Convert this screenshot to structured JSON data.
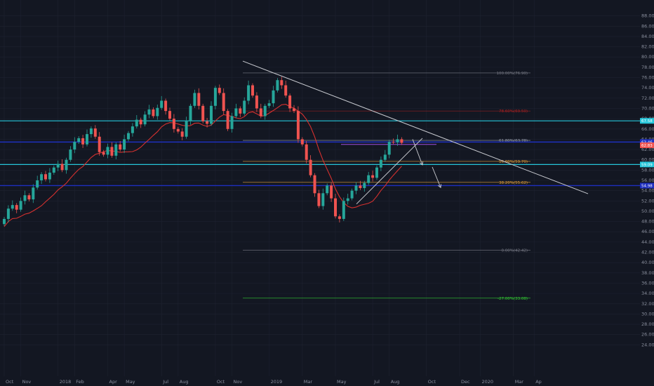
{
  "chart_data": {
    "type": "candlestick",
    "ylim": [
      22,
      90
    ],
    "y_ticks": [
      "88.00",
      "86.00",
      "84.00",
      "82.00",
      "80.00",
      "78.00",
      "76.00",
      "74.00",
      "72.00",
      "70.00",
      "68.00",
      "66.00",
      "64.00",
      "62.00",
      "60.00",
      "58.00",
      "56.00",
      "54.00",
      "52.00",
      "50.00",
      "48.00",
      "46.00",
      "44.00",
      "42.00",
      "40.00",
      "38.00",
      "36.00",
      "34.00",
      "32.00",
      "30.00",
      "28.00",
      "26.00",
      "24.00"
    ],
    "x_ticks": [
      {
        "label": "Oct",
        "i": 0
      },
      {
        "label": "Nov",
        "i": 4
      },
      {
        "label": "2018",
        "i": 13
      },
      {
        "label": "Feb",
        "i": 17
      },
      {
        "label": "Apr",
        "i": 25
      },
      {
        "label": "May",
        "i": 29
      },
      {
        "label": "Jul",
        "i": 38
      },
      {
        "label": "Aug",
        "i": 42
      },
      {
        "label": "Oct",
        "i": 51
      },
      {
        "label": "Nov",
        "i": 55
      },
      {
        "label": "2019",
        "i": 64
      },
      {
        "label": "Mar",
        "i": 72
      },
      {
        "label": "May",
        "i": 80
      },
      {
        "label": "Jul",
        "i": 89
      },
      {
        "label": "Aug",
        "i": 93
      },
      {
        "label": "Oct",
        "i": 102
      },
      {
        "label": "Dec",
        "i": 110
      },
      {
        "label": "2020",
        "i": 115
      },
      {
        "label": "Mar",
        "i": 123
      },
      {
        "label": "Ap",
        "i": 128
      }
    ],
    "closes": [
      48.5,
      50.5,
      51.2,
      50.3,
      52.0,
      53.1,
      52.3,
      54.6,
      56.0,
      57.2,
      56.2,
      57.5,
      58.5,
      59.2,
      58.0,
      60.0,
      62.0,
      63.5,
      64.2,
      63.0,
      65.0,
      66.1,
      64.5,
      61.5,
      61.0,
      62.5,
      60.8,
      63.0,
      62.0,
      64.0,
      65.2,
      66.5,
      67.8,
      66.9,
      68.8,
      69.8,
      68.5,
      70.1,
      71.5,
      69.5,
      68.0,
      66.0,
      65.5,
      64.5,
      67.5,
      70.5,
      73.0,
      70.5,
      67.5,
      67.0,
      70.5,
      74.0,
      73.0,
      69.5,
      66.0,
      68.5,
      70.0,
      69.0,
      71.5,
      74.5,
      72.5,
      70.0,
      68.5,
      70.5,
      71.0,
      73.5,
      75.5,
      74.5,
      72.5,
      70.0,
      69.5,
      64.0,
      63.0,
      60.0,
      57.0,
      53.5,
      51.0,
      53.5,
      55.0,
      52.5,
      49.0,
      48.5,
      52.0,
      52.5,
      54.0,
      55.0,
      54.5,
      55.5,
      57.0,
      56.5,
      58.5,
      60.0,
      61.0,
      63.5,
      63.4,
      64.0,
      63.3
    ],
    "moving_average": {
      "color": "#d6312f"
    },
    "horizontal_lines": [
      {
        "value": 67.58,
        "label": "67.58",
        "color": "#26c6da",
        "width": 1.2
      },
      {
        "value": 63.46,
        "label": "63.46",
        "color": "#1e2fbf",
        "width": 1.4
      },
      {
        "value": 62.83,
        "label": "62.83",
        "color": "#ef5350",
        "width": 0
      },
      {
        "value": 59.09,
        "label": "59.09",
        "color": "#26c6da",
        "width": 1.2
      },
      {
        "value": 54.98,
        "label": "54.98",
        "color": "#1e2fbf",
        "width": 1.4
      }
    ],
    "fib_levels": [
      {
        "value": 76.9,
        "label": "100.00%(76.90)",
        "color": "#787b86"
      },
      {
        "value": 69.5,
        "label": "78.60%(69.50)",
        "color": "#b02020"
      },
      {
        "value": 63.78,
        "label": "61.80%(63.78)",
        "color": "#9aa0ad"
      },
      {
        "value": 59.7,
        "label": "50.00%(59.70)",
        "color": "#e6a23c"
      },
      {
        "value": 55.62,
        "label": "38.20%(55.62)",
        "color": "#e6a23c"
      },
      {
        "value": 42.42,
        "label": "0.00%(42.42)",
        "color": "#787b86"
      },
      {
        "value": 33.08,
        "label": "-27.00%(33.08)",
        "color": "#33cc33"
      }
    ],
    "trendlines": [
      {
        "x1": 346,
        "v1": 79.2,
        "x2": 838,
        "v2": 53.4,
        "color": "#c8cad0"
      },
      {
        "x1": 508,
        "v1": 51.4,
        "x2": 602,
        "v2": 64.2,
        "color": "#c8cad0"
      }
    ],
    "arrows": [
      {
        "x1": 588,
        "v1": 64.0,
        "x2": 602,
        "v2": 59.0,
        "color": "#c8cad0"
      },
      {
        "x1": 616,
        "v1": 58.6,
        "x2": 628,
        "v2": 54.6,
        "color": "#c8cad0"
      }
    ],
    "colors": {
      "up": "#26a69a",
      "down": "#ef5350",
      "grid": "#1e2230",
      "background": "#131722",
      "axis_text": "#8a8f9e"
    }
  }
}
